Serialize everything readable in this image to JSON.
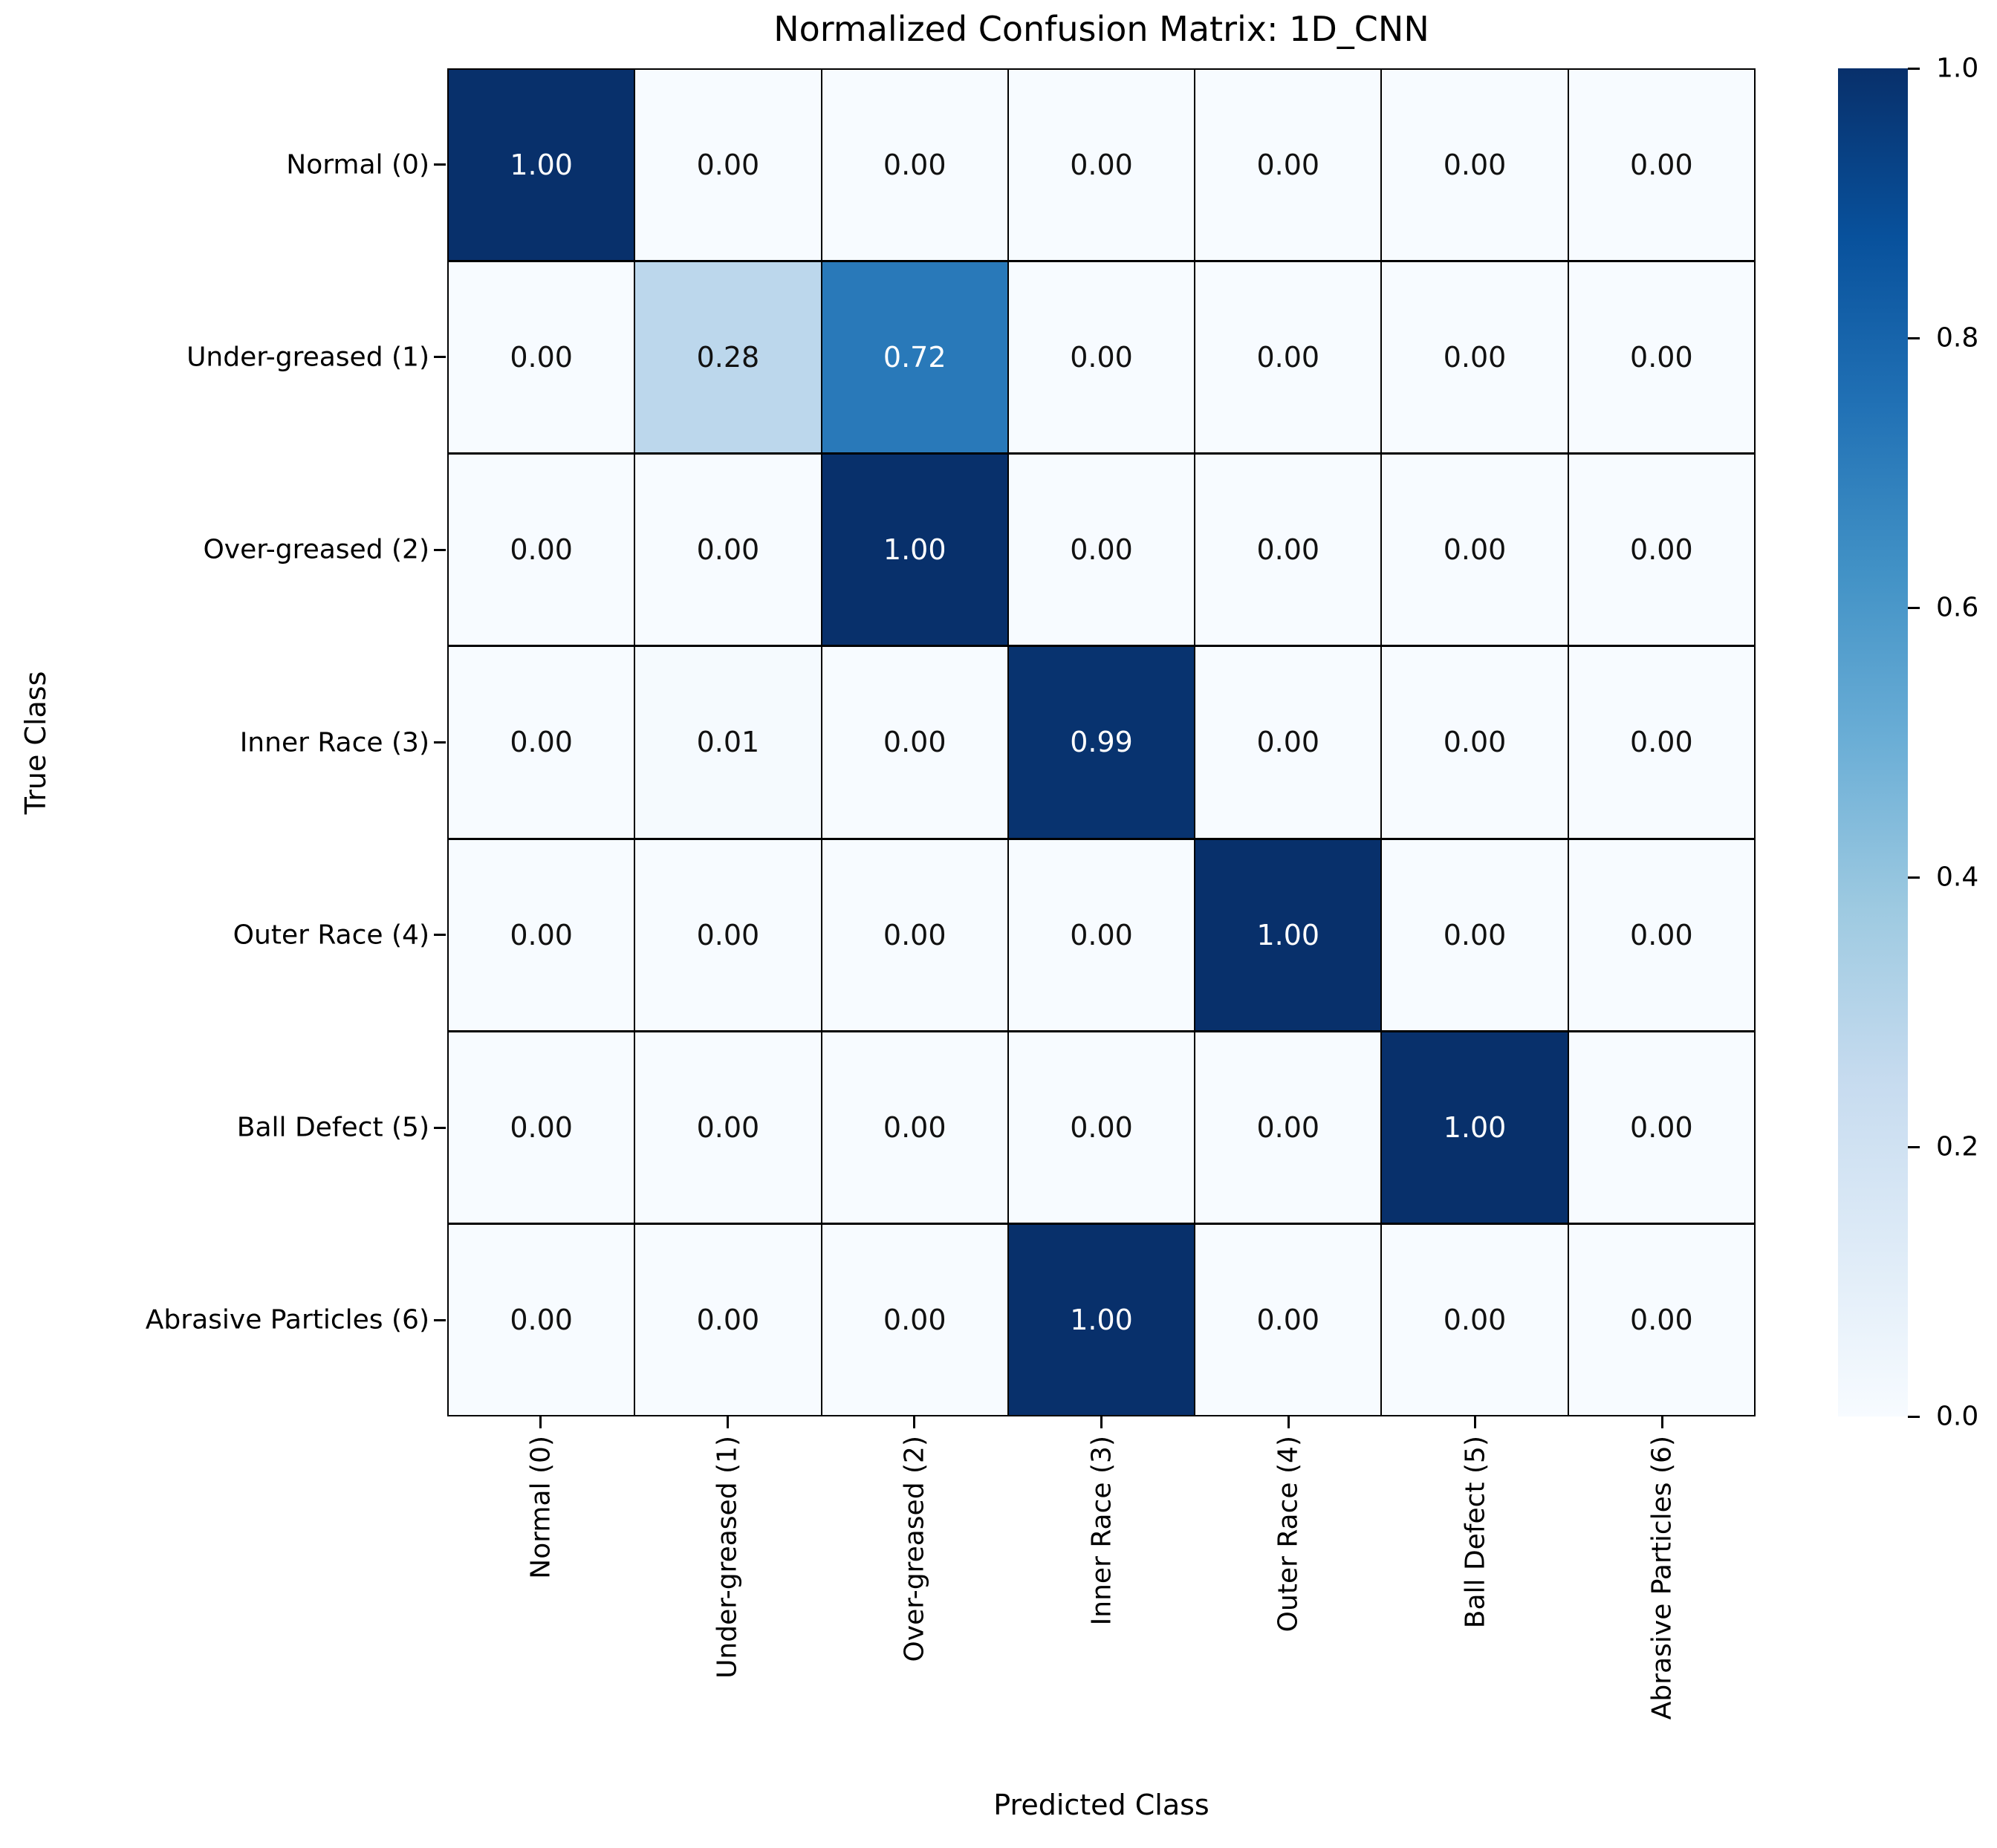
{
  "chart_data": {
    "type": "heatmap",
    "title": "Normalized Confusion Matrix: 1D_CNN",
    "xlabel": "Predicted Class",
    "ylabel": "True Class",
    "x_tick_labels": [
      "Normal (0)",
      "Under-greased (1)",
      "Over-greased (2)",
      "Inner Race (3)",
      "Outer Race (4)",
      "Ball Defect (5)",
      "Abrasive Particles (6)"
    ],
    "y_tick_labels": [
      "Normal (0)",
      "Under-greased (1)",
      "Over-greased (2)",
      "Inner Race (3)",
      "Outer Race (4)",
      "Ball Defect (5)",
      "Abrasive Particles (6)"
    ],
    "values": [
      [
        1.0,
        0.0,
        0.0,
        0.0,
        0.0,
        0.0,
        0.0
      ],
      [
        0.0,
        0.28,
        0.72,
        0.0,
        0.0,
        0.0,
        0.0
      ],
      [
        0.0,
        0.0,
        1.0,
        0.0,
        0.0,
        0.0,
        0.0
      ],
      [
        0.0,
        0.01,
        0.0,
        0.99,
        0.0,
        0.0,
        0.0
      ],
      [
        0.0,
        0.0,
        0.0,
        0.0,
        1.0,
        0.0,
        0.0
      ],
      [
        0.0,
        0.0,
        0.0,
        0.0,
        0.0,
        1.0,
        0.0
      ],
      [
        0.0,
        0.0,
        0.0,
        1.0,
        0.0,
        0.0,
        0.0
      ]
    ],
    "value_decimals": 2,
    "grid_line_color": "#000000",
    "colormap": "Blues",
    "colormap_stops": [
      "#f7fbff",
      "#deebf7",
      "#c6dbef",
      "#9ecae1",
      "#6baed6",
      "#4292c6",
      "#2171b5",
      "#08519c",
      "#08306b"
    ],
    "cell_text_color_light": "#ffffff",
    "cell_text_color_dark": "#111111",
    "colorbar": {
      "min": 0.0,
      "max": 1.0,
      "tick_values": [
        0.0,
        0.2,
        0.4,
        0.6,
        0.8,
        1.0
      ],
      "tick_labels": [
        "0.0",
        "0.2",
        "0.4",
        "0.6",
        "0.8",
        "1.0"
      ],
      "position": "right"
    },
    "legend": "none",
    "grid": "on"
  }
}
